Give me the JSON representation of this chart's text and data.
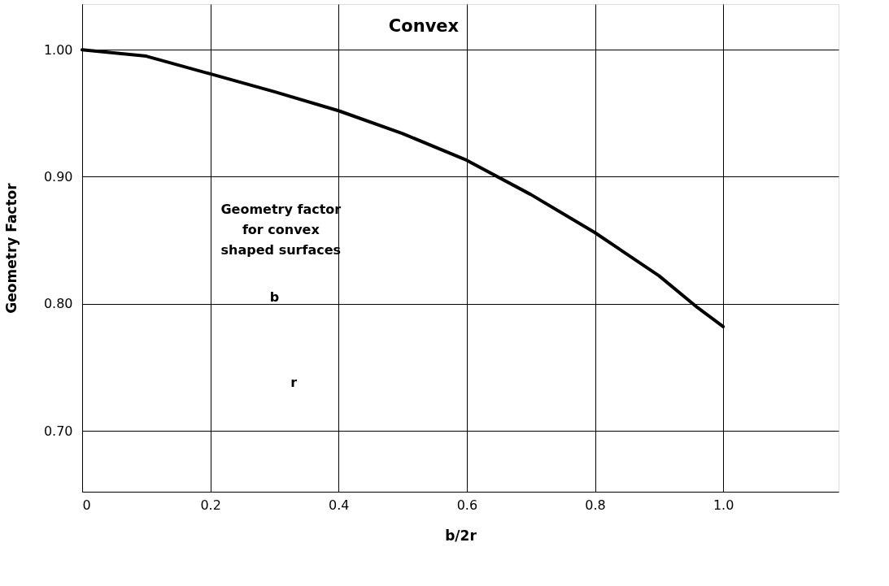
{
  "chart_data": {
    "type": "line",
    "title": "Convex",
    "xlabel": "b/2r",
    "ylabel": "Geometry Factor",
    "x": [
      0,
      0.1,
      0.2,
      0.3,
      0.4,
      0.5,
      0.6,
      0.7,
      0.8,
      0.9,
      0.96,
      1.0
    ],
    "series": [
      {
        "color": "#000000",
        "values": [
          1.0,
          0.995,
          0.981,
          0.967,
          0.952,
          0.934,
          0.913,
          0.886,
          0.856,
          0.822,
          0.797,
          0.782
        ]
      }
    ],
    "xlim": [
      0,
      1.18
    ],
    "xticks": [
      0,
      0.2,
      0.4,
      0.6,
      0.8,
      {
        "value": 1.0,
        "label": "1.0"
      }
    ],
    "ylim": [
      0.652,
      1.036
    ],
    "yticks": [
      {
        "value": 0.7,
        "label": "0.70"
      },
      {
        "value": 0.8,
        "label": "0.80"
      },
      {
        "value": 0.9,
        "label": "0.90"
      },
      {
        "value": 1.0,
        "label": "1.00"
      }
    ],
    "grid": true,
    "marker": "none",
    "line_style": "solid",
    "annotations": [
      "Geometry factor for convex shaped surfaces",
      "b",
      "r"
    ]
  }
}
